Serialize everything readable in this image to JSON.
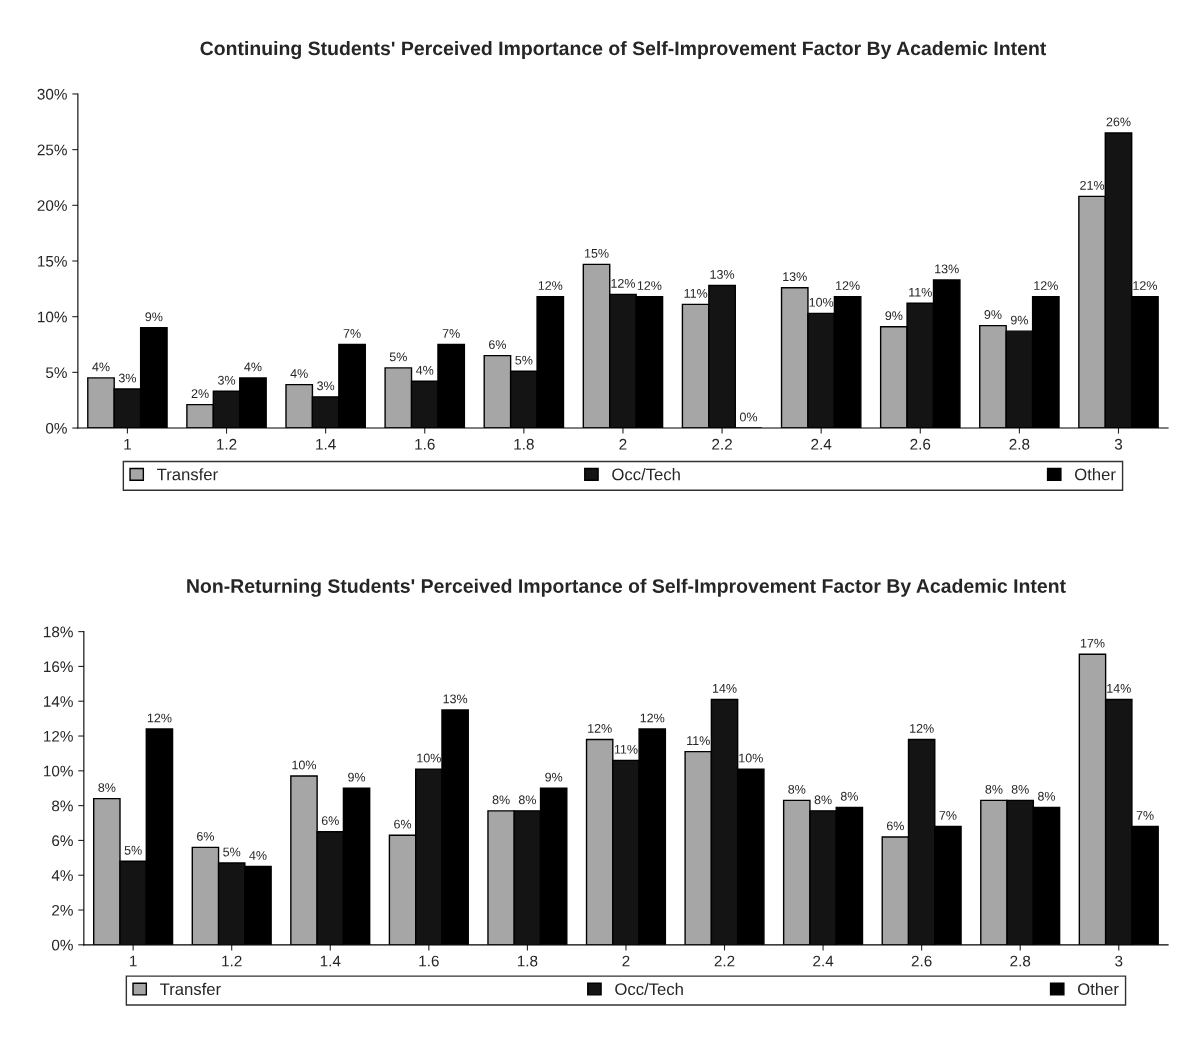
{
  "chart_data": [
    {
      "type": "bar",
      "title": "Continuing Students' Perceived Importance of Self-Improvement Factor By Academic Intent",
      "categories": [
        "1",
        "1.2",
        "1.4",
        "1.6",
        "1.8",
        "2",
        "2.2",
        "2.4",
        "2.6",
        "2.8",
        "3"
      ],
      "series": [
        {
          "name": "Transfer",
          "color": "#a6a6a6",
          "values": [
            4.5,
            2.1,
            3.9,
            5.4,
            6.5,
            14.7,
            11.1,
            12.6,
            9.1,
            9.2,
            20.8
          ],
          "value_labels": [
            "4%",
            "2%",
            "4%",
            "5%",
            "6%",
            "15%",
            "11%",
            "13%",
            "9%",
            "9%",
            "21%"
          ]
        },
        {
          "name": "Occ/Tech",
          "color": "#141414",
          "values": [
            3.5,
            3.3,
            2.8,
            4.2,
            5.1,
            12.0,
            12.8,
            10.3,
            11.2,
            8.7,
            26.5
          ],
          "value_labels": [
            "3%",
            "3%",
            "3%",
            "4%",
            "5%",
            "12%",
            "13%",
            "10%",
            "11%",
            "9%",
            "26%"
          ]
        },
        {
          "name": "Other",
          "color": "#000000",
          "values": [
            9.0,
            4.5,
            7.5,
            7.5,
            11.8,
            11.8,
            0,
            11.8,
            13.3,
            11.8,
            11.8
          ],
          "value_labels": [
            "9%",
            "4%",
            "7%",
            "7%",
            "12%",
            "12%",
            "0%",
            "12%",
            "13%",
            "12%",
            "12%"
          ]
        }
      ],
      "ylim": [
        0,
        30
      ],
      "yticks": [
        {
          "value": 0,
          "label": "0%"
        },
        {
          "value": 5,
          "label": "5%"
        },
        {
          "value": 10,
          "label": "10%"
        },
        {
          "value": 15,
          "label": "15%"
        },
        {
          "value": 20,
          "label": "20%"
        },
        {
          "value": 25,
          "label": "25%"
        },
        {
          "value": 30,
          "label": "30%"
        }
      ],
      "grid": false,
      "legend": "bottom"
    },
    {
      "type": "bar",
      "title": "Non-Returning Students' Perceived Importance of Self-Improvement Factor By Academic Intent",
      "categories": [
        "1",
        "1.2",
        "1.4",
        "1.6",
        "1.8",
        "2",
        "2.2",
        "2.4",
        "2.6",
        "2.8",
        "3"
      ],
      "series": [
        {
          "name": "Transfer",
          "color": "#a6a6a6",
          "values": [
            8.4,
            5.6,
            9.7,
            6.3,
            7.7,
            11.8,
            11.1,
            8.3,
            6.2,
            8.3,
            16.7
          ],
          "value_labels": [
            "8%",
            "6%",
            "10%",
            "6%",
            "8%",
            "12%",
            "11%",
            "8%",
            "6%",
            "8%",
            "17%"
          ]
        },
        {
          "name": "Occ/Tech",
          "color": "#141414",
          "values": [
            4.8,
            4.7,
            6.5,
            10.1,
            7.7,
            10.6,
            14.1,
            7.7,
            11.8,
            8.3,
            14.1
          ],
          "value_labels": [
            "5%",
            "5%",
            "6%",
            "10%",
            "8%",
            "11%",
            "14%",
            "8%",
            "12%",
            "8%",
            "14%"
          ]
        },
        {
          "name": "Other",
          "color": "#000000",
          "values": [
            12.4,
            4.5,
            9.0,
            13.5,
            9.0,
            12.4,
            10.1,
            7.9,
            6.8,
            7.9,
            6.8
          ],
          "value_labels": [
            "12%",
            "4%",
            "9%",
            "13%",
            "9%",
            "12%",
            "10%",
            "8%",
            "7%",
            "8%",
            "7%"
          ]
        }
      ],
      "ylim": [
        0,
        18
      ],
      "yticks": [
        {
          "value": 0,
          "label": "0%"
        },
        {
          "value": 2,
          "label": "2%"
        },
        {
          "value": 4,
          "label": "4%"
        },
        {
          "value": 6,
          "label": "6%"
        },
        {
          "value": 8,
          "label": "8%"
        },
        {
          "value": 10,
          "label": "10%"
        },
        {
          "value": 12,
          "label": "12%"
        },
        {
          "value": 14,
          "label": "14%"
        },
        {
          "value": 16,
          "label": "16%"
        },
        {
          "value": 18,
          "label": "18%"
        }
      ],
      "grid": false,
      "legend": "bottom"
    }
  ]
}
